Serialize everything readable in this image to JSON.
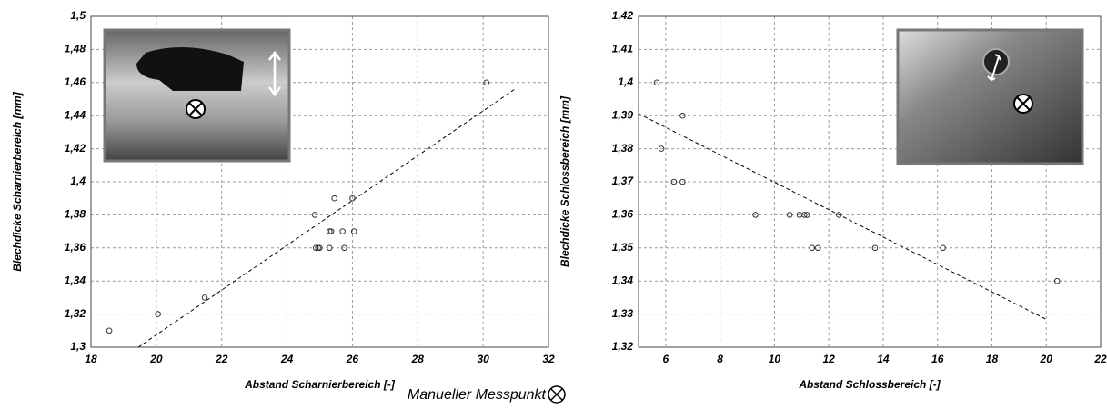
{
  "chart_data": [
    {
      "type": "scatter",
      "x_label": "Abstand Scharnierbereich [-]",
      "y_label": "Blechdicke Scharnierbereich [mm]",
      "x": [
        18.56,
        20.05,
        21.48,
        24.85,
        24.88,
        24.95,
        25.0,
        25.3,
        25.35,
        25.3,
        25.45,
        25.7,
        25.75,
        26.0,
        26.05,
        30.1
      ],
      "values": [
        1.31,
        1.32,
        1.33,
        1.38,
        1.36,
        1.36,
        1.36,
        1.37,
        1.37,
        1.36,
        1.39,
        1.37,
        1.36,
        1.39,
        1.37,
        1.46
      ],
      "trendline": {
        "x": [
          19.45,
          30.97
        ],
        "y": [
          1.3,
          1.456
        ]
      },
      "xlim": [
        18,
        32
      ],
      "xticks": [
        18,
        20,
        22,
        24,
        26,
        28,
        30,
        32
      ],
      "ylim": [
        1.3,
        1.5
      ],
      "yticks": [
        {
          "value": 1.3,
          "label": "1,3"
        },
        {
          "value": 1.32,
          "label": "1,32"
        },
        {
          "value": 1.34,
          "label": "1,34"
        },
        {
          "value": 1.36,
          "label": "1,36"
        },
        {
          "value": 1.38,
          "label": "1,38"
        },
        {
          "value": 1.4,
          "label": "1,4"
        },
        {
          "value": 1.42,
          "label": "1,42"
        },
        {
          "value": 1.44,
          "label": "1,44"
        },
        {
          "value": 1.46,
          "label": "1,46"
        },
        {
          "value": 1.48,
          "label": "1,48"
        },
        {
          "value": 1.5,
          "label": "1,5"
        }
      ],
      "grid": true,
      "color": "#333333"
    },
    {
      "type": "scatter",
      "x_label": "Abstand Schlossbereich [-]",
      "y_label": "Blechdicke Schlossbereich [mm]",
      "x": [
        5.67,
        5.84,
        6.62,
        6.3,
        6.62,
        9.3,
        10.56,
        10.92,
        11.1,
        11.2,
        12.37,
        11.38,
        11.6,
        13.7,
        16.2,
        20.4
      ],
      "values": [
        1.4,
        1.38,
        1.39,
        1.37,
        1.37,
        1.36,
        1.36,
        1.36,
        1.36,
        1.36,
        1.36,
        1.35,
        1.35,
        1.35,
        1.35,
        1.34
      ],
      "trendline": {
        "x": [
          5.0,
          20.05
        ],
        "y": [
          1.3906,
          1.3282
        ]
      },
      "xlim": [
        5,
        22
      ],
      "xticks": [
        6,
        8,
        10,
        12,
        14,
        16,
        18,
        20,
        22
      ],
      "ylim": [
        1.32,
        1.42
      ],
      "yticks": [
        {
          "value": 1.32,
          "label": "1,32"
        },
        {
          "value": 1.33,
          "label": "1,33"
        },
        {
          "value": 1.34,
          "label": "1,34"
        },
        {
          "value": 1.35,
          "label": "1,35"
        },
        {
          "value": 1.36,
          "label": "1,36"
        },
        {
          "value": 1.37,
          "label": "1,37"
        },
        {
          "value": 1.38,
          "label": "1,38"
        },
        {
          "value": 1.39,
          "label": "1,39"
        },
        {
          "value": 1.4,
          "label": "1,4"
        },
        {
          "value": 1.41,
          "label": "1,41"
        },
        {
          "value": 1.42,
          "label": "1,42"
        }
      ],
      "grid": true,
      "color": "#333333"
    }
  ],
  "caption": "Manueller Messpunkt"
}
